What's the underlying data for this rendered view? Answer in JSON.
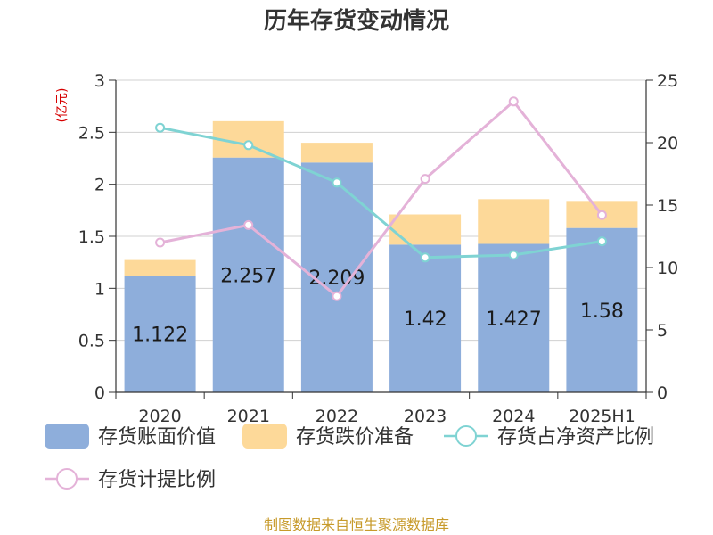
{
  "chart_data": {
    "type": "bar",
    "title": "历年存货变动情况",
    "categories": [
      "2020",
      "2021",
      "2022",
      "2023",
      "2024",
      "2025H1"
    ],
    "y_left": {
      "unit_label": "(亿元)",
      "ylim": [
        0,
        3
      ],
      "ticks": [
        "0",
        "0.5",
        "1",
        "1.5",
        "2",
        "2.5",
        "3"
      ]
    },
    "y_right": {
      "ylim": [
        0,
        25
      ],
      "ticks": [
        "0",
        "5",
        "10",
        "15",
        "20",
        "25"
      ]
    },
    "series": [
      {
        "name": "存货账面价值",
        "kind": "bar",
        "axis": "left",
        "color": "#8eaedb",
        "values": [
          1.122,
          2.257,
          2.209,
          1.42,
          1.427,
          1.58
        ],
        "labels": [
          "1.122",
          "2.257",
          "2.209",
          "1.42",
          "1.427",
          "1.58"
        ]
      },
      {
        "name": "存货跌价准备",
        "kind": "bar-stacked",
        "axis": "left",
        "color": "#fdd999",
        "values": [
          0.15,
          0.35,
          0.19,
          0.29,
          0.43,
          0.26
        ]
      },
      {
        "name": "存货占净资产比例",
        "kind": "line",
        "axis": "right",
        "color": "#7fd3d3",
        "values": [
          21.2,
          19.8,
          16.8,
          10.8,
          11.0,
          12.1
        ]
      },
      {
        "name": "存货计提比例",
        "kind": "line",
        "axis": "right",
        "color": "#e4b2d8",
        "values": [
          12.0,
          13.4,
          7.7,
          17.1,
          23.3,
          14.2
        ]
      }
    ],
    "grid": true,
    "legend_position": "bottom"
  },
  "footer": {
    "source": "制图数据来自恒生聚源数据库"
  }
}
